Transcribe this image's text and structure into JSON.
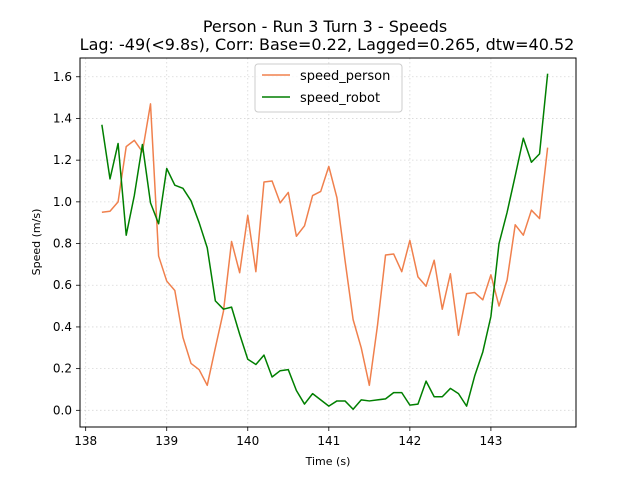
{
  "chart_data": {
    "type": "line",
    "title": "Person - Run 3 Turn 3 - Speeds",
    "subtitle": "Lag: -49(<9.8s), Corr: Base=0.22, Lagged=0.265, dtw=40.52",
    "xlabel": "Time (s)",
    "ylabel": "Speed (m/s)",
    "xlim": [
      137.93,
      144.05
    ],
    "ylim": [
      -0.08,
      1.69
    ],
    "xticks": [
      138,
      139,
      140,
      141,
      142,
      143
    ],
    "xtick_labels": [
      "138",
      "139",
      "140",
      "141",
      "142",
      "143"
    ],
    "yticks": [
      0.0,
      0.2,
      0.4,
      0.6,
      0.8,
      1.0,
      1.2,
      1.4,
      1.6
    ],
    "ytick_labels": [
      "0.0",
      "0.2",
      "0.4",
      "0.6",
      "0.8",
      "1.0",
      "1.2",
      "1.4",
      "1.6"
    ],
    "grid": true,
    "legend_position": "upper center",
    "series": [
      {
        "name": "speed_person",
        "color": "#f0804d",
        "x": [
          138.2,
          138.3,
          138.4,
          138.5,
          138.6,
          138.7,
          138.8,
          138.9,
          139.0,
          139.1,
          139.2,
          139.3,
          139.4,
          139.5,
          139.6,
          139.7,
          139.8,
          139.9,
          140.0,
          140.1,
          140.2,
          140.3,
          140.4,
          140.5,
          140.6,
          140.7,
          140.8,
          140.9,
          141.0,
          141.1,
          141.2,
          141.3,
          141.4,
          141.5,
          141.6,
          141.7,
          141.8,
          141.9,
          142.0,
          142.1,
          142.2,
          142.3,
          142.4,
          142.5,
          142.6,
          142.7,
          142.8,
          142.9,
          143.0,
          143.1,
          143.2,
          143.3,
          143.4,
          143.5,
          143.6,
          143.7
        ],
        "values": [
          0.95,
          0.955,
          1.0,
          1.265,
          1.295,
          1.24,
          1.47,
          0.74,
          0.62,
          0.575,
          0.35,
          0.225,
          0.195,
          0.12,
          0.3,
          0.475,
          0.81,
          0.66,
          0.935,
          0.665,
          1.095,
          1.1,
          0.995,
          1.045,
          0.835,
          0.885,
          1.03,
          1.05,
          1.17,
          1.02,
          0.72,
          0.435,
          0.3,
          0.12,
          0.405,
          0.745,
          0.75,
          0.665,
          0.815,
          0.64,
          0.595,
          0.72,
          0.485,
          0.655,
          0.36,
          0.56,
          0.565,
          0.53,
          0.65,
          0.5,
          0.625,
          0.89,
          0.84,
          0.96,
          0.92,
          1.26
        ]
      },
      {
        "name": "speed_robot",
        "color": "#007f00",
        "x": [
          138.2,
          138.3,
          138.4,
          138.5,
          138.6,
          138.7,
          138.8,
          138.9,
          139.0,
          139.1,
          139.2,
          139.3,
          139.4,
          139.5,
          139.6,
          139.7,
          139.8,
          139.9,
          140.0,
          140.1,
          140.2,
          140.3,
          140.4,
          140.5,
          140.6,
          140.7,
          140.8,
          140.9,
          141.0,
          141.1,
          141.2,
          141.3,
          141.4,
          141.5,
          141.6,
          141.7,
          141.8,
          141.9,
          142.0,
          142.1,
          142.2,
          142.3,
          142.4,
          142.5,
          142.6,
          142.7,
          142.8,
          142.9,
          143.0,
          143.1,
          143.2,
          143.3,
          143.4,
          143.5,
          143.6,
          143.7
        ],
        "values": [
          1.37,
          1.11,
          1.28,
          0.84,
          1.03,
          1.275,
          0.995,
          0.895,
          1.16,
          1.08,
          1.065,
          1.005,
          0.9,
          0.78,
          0.525,
          0.485,
          0.495,
          0.365,
          0.245,
          0.22,
          0.265,
          0.16,
          0.19,
          0.195,
          0.095,
          0.03,
          0.08,
          0.05,
          0.02,
          0.045,
          0.045,
          0.005,
          0.05,
          0.045,
          0.05,
          0.055,
          0.085,
          0.085,
          0.025,
          0.03,
          0.14,
          0.065,
          0.065,
          0.105,
          0.08,
          0.02,
          0.165,
          0.28,
          0.45,
          0.8,
          0.95,
          1.125,
          1.305,
          1.19,
          1.23,
          1.615
        ]
      }
    ]
  }
}
